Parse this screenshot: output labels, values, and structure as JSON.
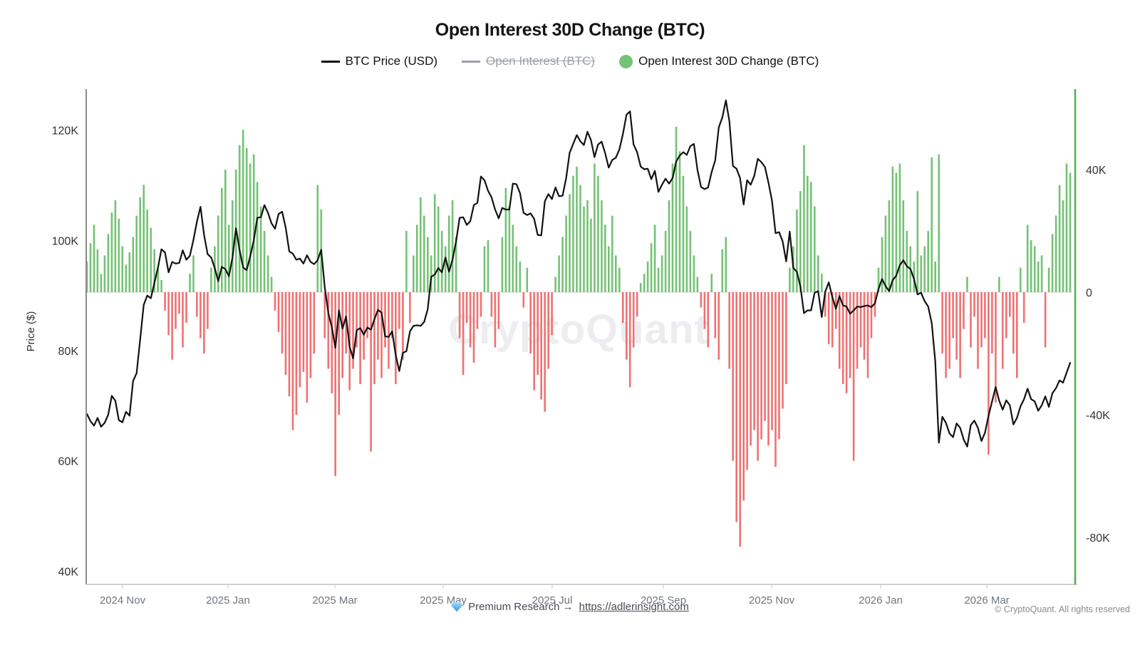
{
  "title": "Open Interest 30D Change (BTC)",
  "legend": {
    "items": [
      {
        "label": "BTC Price (USD)",
        "marker": "line",
        "color": "#111111",
        "disabled": false
      },
      {
        "label": "Open Interest (BTC)",
        "marker": "line",
        "color": "#9aa0a6",
        "disabled": true
      },
      {
        "label": "Open Interest 30D Change (BTC)",
        "marker": "dot",
        "color": "#74c274",
        "disabled": false
      }
    ]
  },
  "watermark": "CryptoQuant",
  "footer": {
    "premium_text": "Premium Research",
    "arrow": "→",
    "link": "https://adlerinsight.com",
    "copyright": "© CryptoQuant. All rights reserved"
  },
  "chart_data": {
    "type": "combo-line-bar",
    "title": "Open Interest 30D Change (BTC)",
    "x_start_date": "2024-10-12",
    "x_end_date": "2026-04-19",
    "step_days": 2,
    "x_axis": {
      "labels": [
        "2024 Nov",
        "2025 Jan",
        "2025 Mar",
        "2025 May",
        "2025 Jul",
        "2025 Sep",
        "2025 Nov",
        "2026 Jan",
        "2026 Mar"
      ]
    },
    "price_axis": {
      "name": "Price ($)",
      "tick_values": [
        40,
        60,
        80,
        100,
        120
      ],
      "tick_labels": [
        "40K",
        "60K",
        "80K",
        "100K",
        "120K"
      ],
      "unit": "USD thousands"
    },
    "oi_axis": {
      "tick_values": [
        -80,
        -40,
        0,
        40
      ],
      "tick_labels": [
        "-80K",
        "-40K",
        "0",
        "40K"
      ],
      "unit": "BTC thousands"
    },
    "series": [
      {
        "name": "BTC Price (USD)",
        "type": "line",
        "color": "#111111",
        "values": [
          68.5,
          67.2,
          66.4,
          67.8,
          66.2,
          66.9,
          68.4,
          71.8,
          70.9,
          67.4,
          67.0,
          68.9,
          68.2,
          74.5,
          75.9,
          82.0,
          88.3,
          90.0,
          89.5,
          92.3,
          95.0,
          98.4,
          97.8,
          94.2,
          96.1,
          95.8,
          95.9,
          98.2,
          96.5,
          97.2,
          100.1,
          103.4,
          106.1,
          101.0,
          97.5,
          96.9,
          95.0,
          92.6,
          95.2,
          94.8,
          93.5,
          96.9,
          102.2,
          98.3,
          95.1,
          94.6,
          97.1,
          100.0,
          104.1,
          104.2,
          106.4,
          105.0,
          103.1,
          102.1,
          104.8,
          105.2,
          102.3,
          98.0,
          97.6,
          96.5,
          96.7,
          95.8,
          97.3,
          96.1,
          95.7,
          96.4,
          98.3,
          91.5,
          86.8,
          84.2,
          80.5,
          87.3,
          84.0,
          86.2,
          80.7,
          78.6,
          83.7,
          84.1,
          82.9,
          84.2,
          83.8,
          85.7,
          87.4,
          86.9,
          82.6,
          82.5,
          83.5,
          79.2,
          76.3,
          79.6,
          79.9,
          83.5,
          84.5,
          84.6,
          84.5,
          85.2,
          87.5,
          93.4,
          93.8,
          95.0,
          94.2,
          96.9,
          94.3,
          96.5,
          99.8,
          104.1,
          104.2,
          102.8,
          103.5,
          106.4,
          106.8,
          111.6,
          110.9,
          109.0,
          107.8,
          105.6,
          104.0,
          105.9,
          105.6,
          105.6,
          110.3,
          110.2,
          108.6,
          105.0,
          104.6,
          104.9,
          103.9,
          101.0,
          100.9,
          107.1,
          108.4,
          107.5,
          109.6,
          108.0,
          108.1,
          111.3,
          115.9,
          117.5,
          119.1,
          118.0,
          117.3,
          119.7,
          118.2,
          115.1,
          117.4,
          117.9,
          115.8,
          113.2,
          114.6,
          115.0,
          116.5,
          119.3,
          122.8,
          123.4,
          117.4,
          116.0,
          113.4,
          112.9,
          113.0,
          111.1,
          112.6,
          108.8,
          110.1,
          111.2,
          110.3,
          111.3,
          114.3,
          115.4,
          116.0,
          115.5,
          117.1,
          117.5,
          112.8,
          109.7,
          109.3,
          109.6,
          112.4,
          114.5,
          120.5,
          122.3,
          125.4,
          121.6,
          113.5,
          113.0,
          111.3,
          106.5,
          110.9,
          110.1,
          111.7,
          114.8,
          114.2,
          113.3,
          110.5,
          107.2,
          101.3,
          101.5,
          99.8,
          96.2,
          101.6,
          95.0,
          94.3,
          91.6,
          86.8,
          87.3,
          87.3,
          90.5,
          90.8,
          86.1,
          90.7,
          92.4,
          89.7,
          87.6,
          89.9,
          88.2,
          88.0,
          86.7,
          87.3,
          88.0,
          87.9,
          88.1,
          88.2,
          87.9,
          88.6,
          91.2,
          93.0,
          91.7,
          90.8,
          92.8,
          93.6,
          95.5,
          96.4,
          95.3,
          94.8,
          93.0,
          90.2,
          90.5,
          89.0,
          88.0,
          85.0,
          78.0,
          63.3,
          68.0,
          66.9,
          65.0,
          64.3,
          66.8,
          66.0,
          63.9,
          62.6,
          66.5,
          67.3,
          66.0,
          63.6,
          65.1,
          68.2,
          70.8,
          73.4,
          70.9,
          69.3,
          71.0,
          70.1,
          66.6,
          67.8,
          69.9,
          71.2,
          73.1,
          71.2,
          70.8,
          69.1,
          70.1,
          71.7,
          69.8,
          72.3,
          73.2,
          74.6,
          74.2,
          76.0,
          77.8
        ]
      },
      {
        "name": "Open Interest 30D Change (BTC)",
        "type": "bar",
        "color_positive": "#74c274",
        "color_negative": "#ef7171",
        "values": [
          10,
          16,
          22,
          14,
          6,
          12,
          19,
          26,
          30,
          24,
          15,
          9,
          13,
          18,
          25,
          31,
          35,
          27,
          21,
          14,
          8,
          4,
          -6,
          -14,
          -22,
          -12,
          -7,
          -18,
          -10,
          6,
          12,
          -8,
          -15,
          -20,
          -12,
          8,
          15,
          25,
          34,
          40,
          22,
          30,
          40,
          48,
          53,
          47,
          42,
          45,
          36,
          28,
          20,
          12,
          5,
          -6,
          -13,
          -20,
          -27,
          -34,
          -45,
          -40,
          -31,
          -26,
          -36,
          -28,
          -20,
          35,
          27,
          -15,
          -25,
          -33,
          -60,
          -40,
          -28,
          -20,
          -32,
          -25,
          -18,
          -30,
          -22,
          -15,
          -52,
          -30,
          -22,
          -28,
          -18,
          -25,
          -15,
          -30,
          -12,
          -22,
          20,
          -10,
          12,
          22,
          31,
          25,
          18,
          12,
          32,
          28,
          20,
          15,
          25,
          30,
          18,
          -15,
          -27,
          -10,
          -18,
          -23,
          -12,
          -8,
          15,
          17,
          -8,
          -18,
          -12,
          18,
          34,
          28,
          22,
          15,
          10,
          -5,
          8,
          -20,
          -32,
          -27,
          -35,
          -39,
          -25,
          -14,
          5,
          12,
          18,
          25,
          32,
          38,
          41,
          35,
          28,
          30,
          24,
          42,
          38,
          30,
          22,
          15,
          25,
          12,
          8,
          -10,
          -22,
          -31,
          -18,
          -8,
          3,
          6,
          10,
          16,
          22,
          8,
          12,
          20,
          30,
          42,
          54,
          46,
          38,
          28,
          20,
          12,
          5,
          -5,
          -12,
          -18,
          6,
          -15,
          -22,
          14,
          18,
          -25,
          -55,
          -75,
          -83,
          -68,
          -58,
          -50,
          -45,
          -55,
          -48,
          -42,
          -50,
          -45,
          -57,
          -48,
          -38,
          -30,
          8,
          15,
          27,
          33,
          48,
          38,
          36,
          28,
          12,
          6,
          -8,
          -17,
          -18,
          -12,
          -25,
          -30,
          -33,
          -28,
          -55,
          -25,
          -18,
          -22,
          -28,
          -15,
          -8,
          8,
          18,
          25,
          30,
          41,
          39,
          42,
          30,
          20,
          15,
          10,
          33,
          12,
          15,
          20,
          44,
          10,
          45,
          -20,
          -28,
          -25,
          -15,
          -22,
          -28,
          -12,
          5,
          -18,
          -8,
          -25,
          -18,
          -15,
          -53,
          -20,
          -36,
          5,
          -25,
          -15,
          -8,
          -20,
          -28,
          8,
          -10,
          22,
          17,
          15,
          10,
          12,
          -18,
          8,
          19,
          25,
          35,
          30,
          42,
          39
        ]
      },
      {
        "name": "Open Interest (BTC)",
        "type": "line",
        "color": "#9aa0a6",
        "hidden": true,
        "values": []
      }
    ]
  }
}
